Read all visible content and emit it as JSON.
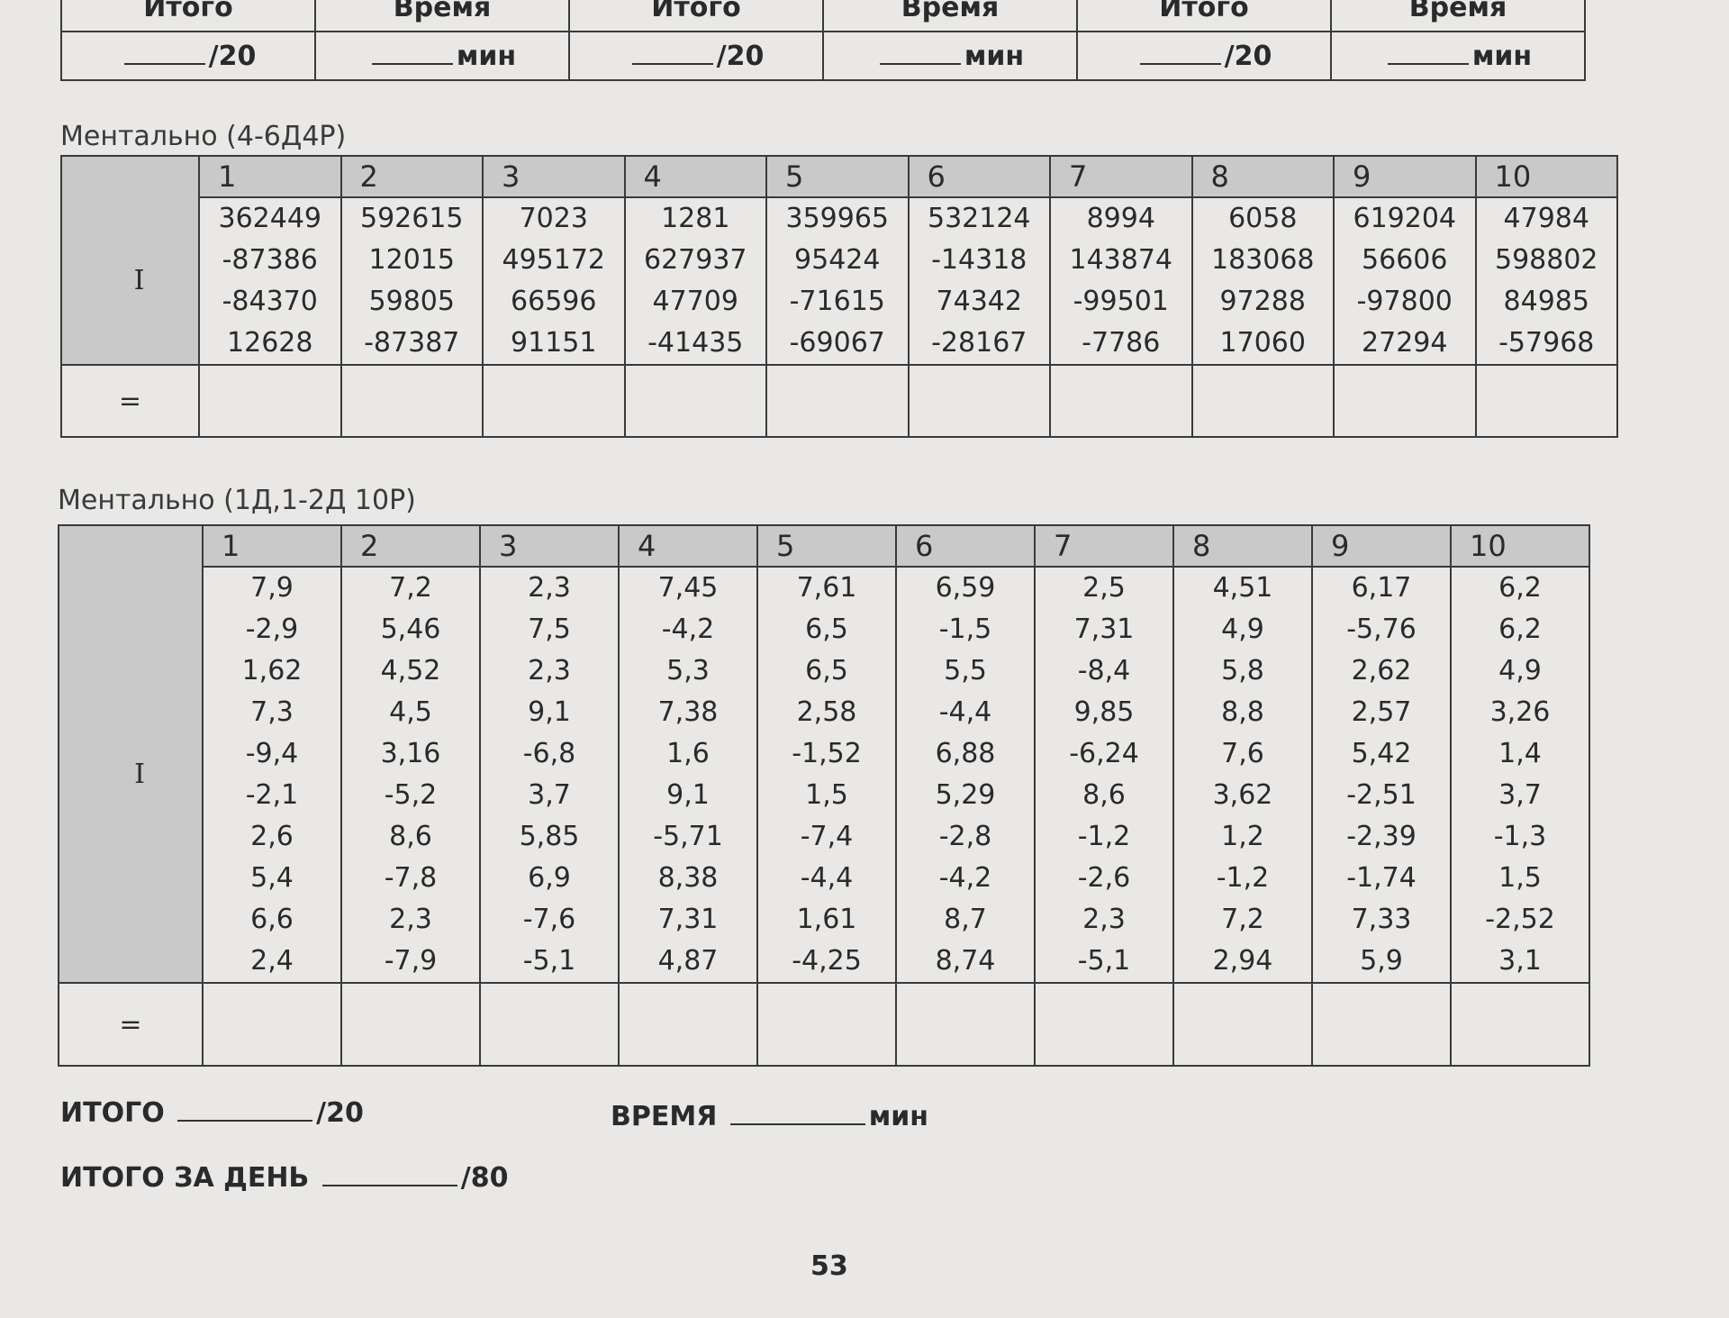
{
  "top_table": {
    "headers": [
      "Итого",
      "Время",
      "Итого",
      "Время",
      "Итого",
      "Время"
    ],
    "cells": [
      "/20",
      "мин",
      "/20",
      "мин",
      "/20",
      "мин"
    ]
  },
  "section1": {
    "title": "Ментально (4-6Д4Р)",
    "row_label": "I",
    "total_label": "=",
    "columns": [
      {
        "header": "1",
        "values": [
          "362449",
          "-87386",
          "-84370",
          "12628"
        ]
      },
      {
        "header": "2",
        "values": [
          "592615",
          "12015",
          "59805",
          "-87387"
        ]
      },
      {
        "header": "3",
        "values": [
          "7023",
          "495172",
          "66596",
          "91151"
        ]
      },
      {
        "header": "4",
        "values": [
          "1281",
          "627937",
          "47709",
          "-41435"
        ]
      },
      {
        "header": "5",
        "values": [
          "359965",
          "95424",
          "-71615",
          "-69067"
        ]
      },
      {
        "header": "6",
        "values": [
          "532124",
          "-14318",
          "74342",
          "-28167"
        ]
      },
      {
        "header": "7",
        "values": [
          "8994",
          "143874",
          "-99501",
          "-7786"
        ]
      },
      {
        "header": "8",
        "values": [
          "6058",
          "183068",
          "97288",
          "17060"
        ]
      },
      {
        "header": "9",
        "values": [
          "619204",
          "56606",
          "-97800",
          "27294"
        ]
      },
      {
        "header": "10",
        "values": [
          "47984",
          "598802",
          "84985",
          "-57968"
        ]
      }
    ]
  },
  "section2": {
    "title": "Ментально (1Д,1-2Д 10Р)",
    "row_label": "I",
    "total_label": "=",
    "columns": [
      {
        "header": "1",
        "values": [
          "7,9",
          "-2,9",
          "1,62",
          "7,3",
          "-9,4",
          "-2,1",
          "2,6",
          "5,4",
          "6,6",
          "2,4"
        ]
      },
      {
        "header": "2",
        "values": [
          "7,2",
          "5,46",
          "4,52",
          "4,5",
          "3,16",
          "-5,2",
          "8,6",
          "-7,8",
          "2,3",
          "-7,9"
        ]
      },
      {
        "header": "3",
        "values": [
          "2,3",
          "7,5",
          "2,3",
          "9,1",
          "-6,8",
          "3,7",
          "5,85",
          "6,9",
          "-7,6",
          "-5,1"
        ]
      },
      {
        "header": "4",
        "values": [
          "7,45",
          "-4,2",
          "5,3",
          "7,38",
          "1,6",
          "9,1",
          "-5,71",
          "8,38",
          "7,31",
          "4,87"
        ]
      },
      {
        "header": "5",
        "values": [
          "7,61",
          "6,5",
          "6,5",
          "2,58",
          "-1,52",
          "1,5",
          "-7,4",
          "-4,4",
          "1,61",
          "-4,25"
        ]
      },
      {
        "header": "6",
        "values": [
          "6,59",
          "-1,5",
          "5,5",
          "-4,4",
          "6,88",
          "5,29",
          "-2,8",
          "-4,2",
          "8,7",
          "8,74"
        ]
      },
      {
        "header": "7",
        "values": [
          "2,5",
          "7,31",
          "-8,4",
          "9,85",
          "-6,24",
          "8,6",
          "-1,2",
          "-2,6",
          "2,3",
          "-5,1"
        ]
      },
      {
        "header": "8",
        "values": [
          "4,51",
          "4,9",
          "5,8",
          "8,8",
          "7,6",
          "3,62",
          "1,2",
          "-1,2",
          "7,2",
          "2,94"
        ]
      },
      {
        "header": "9",
        "values": [
          "6,17",
          "-5,76",
          "2,62",
          "2,57",
          "5,42",
          "-2,51",
          "-2,39",
          "-1,74",
          "7,33",
          "5,9"
        ]
      },
      {
        "header": "10",
        "values": [
          "6,2",
          "6,2",
          "4,9",
          "3,26",
          "1,4",
          "3,7",
          "-1,3",
          "1,5",
          "-2,52",
          "3,1"
        ]
      }
    ]
  },
  "footer": {
    "total_label": "ИТОГО",
    "total_max": "/20",
    "time_label": "ВРЕМЯ",
    "time_unit": "мин",
    "day_label": "ИТОГО ЗА ДЕНЬ",
    "day_max": "/80"
  },
  "page_number": "53"
}
